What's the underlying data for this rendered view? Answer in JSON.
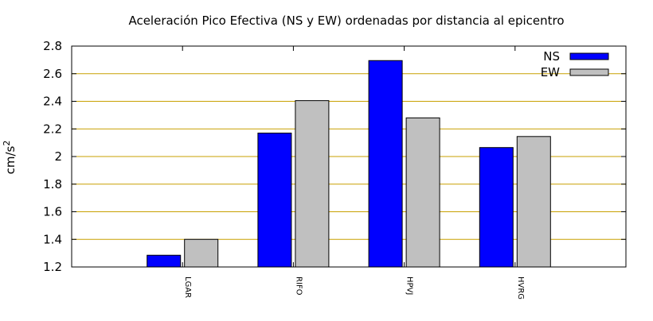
{
  "chart_data": {
    "type": "bar",
    "title": "Aceleración Pico Efectiva (NS y EW) ordenadas por distancia al epicentro",
    "ylabel": "cm/s",
    "ylabel_sup": "2",
    "xlabel": "",
    "ylim": [
      1.2,
      2.8
    ],
    "yticks": [
      "1.2",
      "1.4",
      "1.6",
      "1.8",
      "2",
      "2.2",
      "2.4",
      "2.6",
      "2.8"
    ],
    "grid": true,
    "legend_position": "top-right",
    "categories": [
      "LGAR",
      "RIFO",
      "HPVJ",
      "HVRG"
    ],
    "series": [
      {
        "name": "NS",
        "color": "#0000ff",
        "values": [
          1.285,
          2.17,
          2.695,
          2.065
        ]
      },
      {
        "name": "EW",
        "color": "#c0c0c0",
        "values": [
          1.4,
          2.405,
          2.28,
          2.145
        ]
      }
    ],
    "grid_color": "#c8a000"
  }
}
